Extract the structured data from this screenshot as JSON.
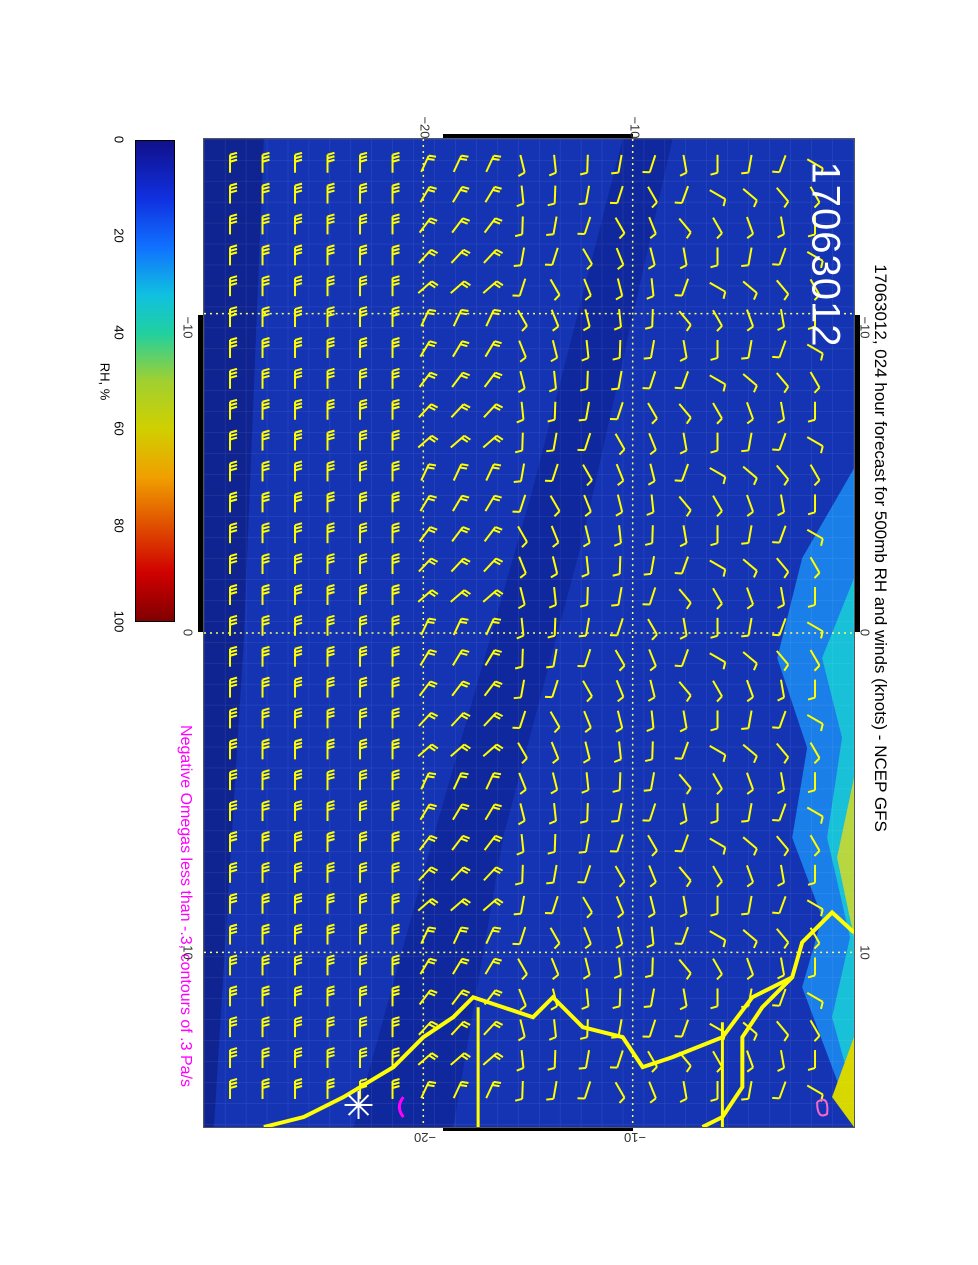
{
  "title": "17063012, 024 hour forecast for 500mb RH and winds (knots) - NCEP GFS",
  "stamp": "17063012",
  "note": "Negative Omegas less than -.3, contours of .3 Pa/s",
  "colorbar": {
    "label": "RH, %",
    "ticks": [
      "0",
      "20",
      "40",
      "60",
      "80",
      "100"
    ],
    "colors": [
      "#10108a",
      "#1070ff",
      "#20d0a0",
      "#d0d000",
      "#f0a000",
      "#d00000",
      "#800000"
    ]
  },
  "axes": {
    "top": [
      "−20",
      "−10"
    ],
    "bottom": [
      "−20",
      "−10"
    ],
    "left": [
      "−10",
      "0",
      "10"
    ],
    "right": [
      "−10",
      "0",
      "10"
    ]
  },
  "colors": {
    "ocean": "#1434b4",
    "barb": "#ffff00",
    "coast": "#ffff00",
    "grid": "#ffff66",
    "omega": "#ff00ff"
  }
}
